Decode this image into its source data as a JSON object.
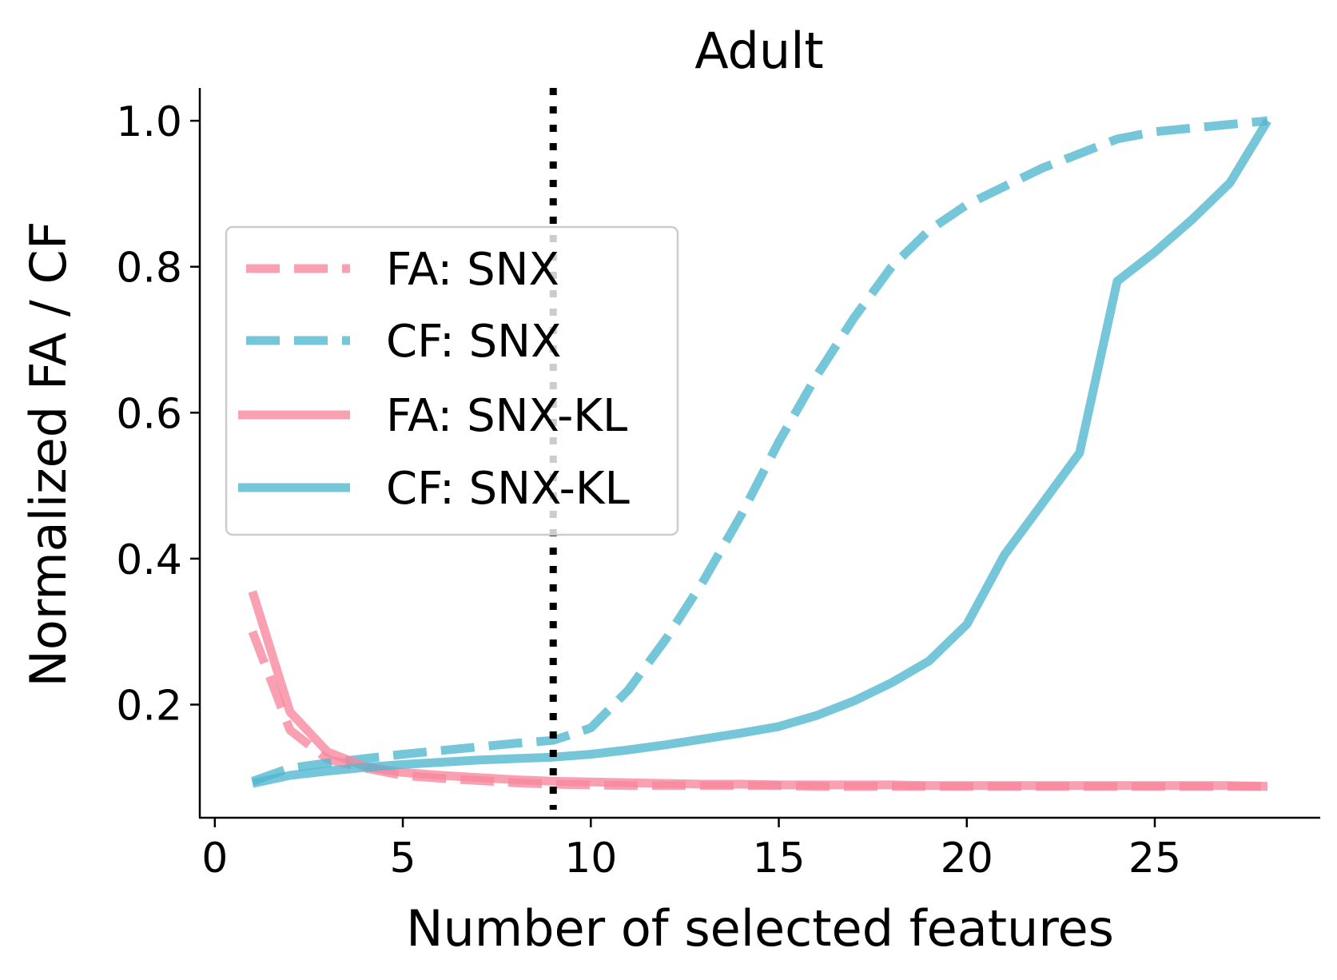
{
  "chart_data": {
    "type": "line",
    "title": "Adult",
    "xlabel": "Number of selected features",
    "ylabel": "Normalized FA / CF",
    "xlim": [
      -0.4,
      29.4
    ],
    "ylim": [
      0.045,
      1.045
    ],
    "xticks": [
      0,
      5,
      10,
      15,
      20,
      25
    ],
    "xtick_labels": [
      "0",
      "5",
      "10",
      "15",
      "20",
      "25"
    ],
    "yticks": [
      0.2,
      0.4,
      0.6,
      0.8,
      1.0
    ],
    "ytick_labels": [
      "0.2",
      "0.4",
      "0.6",
      "0.8",
      "1.0"
    ],
    "grid": false,
    "legend_position": "center-left",
    "vline": {
      "x": 9,
      "style": "dotted",
      "color": "#000000"
    },
    "x": [
      1,
      2,
      3,
      4,
      5,
      6,
      7,
      8,
      9,
      10,
      11,
      12,
      13,
      14,
      15,
      16,
      17,
      18,
      19,
      20,
      21,
      22,
      23,
      24,
      25,
      26,
      27,
      28
    ],
    "series": [
      {
        "name": "FA: SNX",
        "style": "dashed",
        "color": "#f7879c",
        "values": [
          0.3,
          0.165,
          0.125,
          0.113,
          0.103,
          0.099,
          0.096,
          0.093,
          0.091,
          0.09,
          0.089,
          0.089,
          0.089,
          0.089,
          0.089,
          0.088,
          0.088,
          0.088,
          0.088,
          0.088,
          0.088,
          0.088,
          0.088,
          0.088,
          0.088,
          0.088,
          0.088,
          0.088
        ]
      },
      {
        "name": "CF: SNX",
        "style": "dashed",
        "color": "#4fb6cf",
        "values": [
          0.095,
          0.113,
          0.12,
          0.126,
          0.132,
          0.137,
          0.142,
          0.147,
          0.151,
          0.168,
          0.22,
          0.29,
          0.37,
          0.46,
          0.56,
          0.65,
          0.73,
          0.8,
          0.85,
          0.885,
          0.91,
          0.935,
          0.955,
          0.975,
          0.985,
          0.99,
          0.995,
          1.0
        ]
      },
      {
        "name": "FA: SNX-KL",
        "style": "solid",
        "color": "#f7879c",
        "values": [
          0.355,
          0.19,
          0.135,
          0.115,
          0.107,
          0.103,
          0.1,
          0.097,
          0.095,
          0.094,
          0.093,
          0.092,
          0.091,
          0.091,
          0.09,
          0.09,
          0.09,
          0.09,
          0.089,
          0.089,
          0.089,
          0.089,
          0.089,
          0.089,
          0.089,
          0.089,
          0.089,
          0.088
        ]
      },
      {
        "name": "CF: SNX-KL",
        "style": "solid",
        "color": "#4fb6cf",
        "values": [
          0.092,
          0.103,
          0.109,
          0.114,
          0.118,
          0.121,
          0.124,
          0.126,
          0.128,
          0.132,
          0.138,
          0.145,
          0.153,
          0.161,
          0.17,
          0.185,
          0.205,
          0.23,
          0.26,
          0.31,
          0.405,
          0.475,
          0.545,
          0.78,
          0.82,
          0.865,
          0.915,
          1.0
        ]
      }
    ]
  }
}
